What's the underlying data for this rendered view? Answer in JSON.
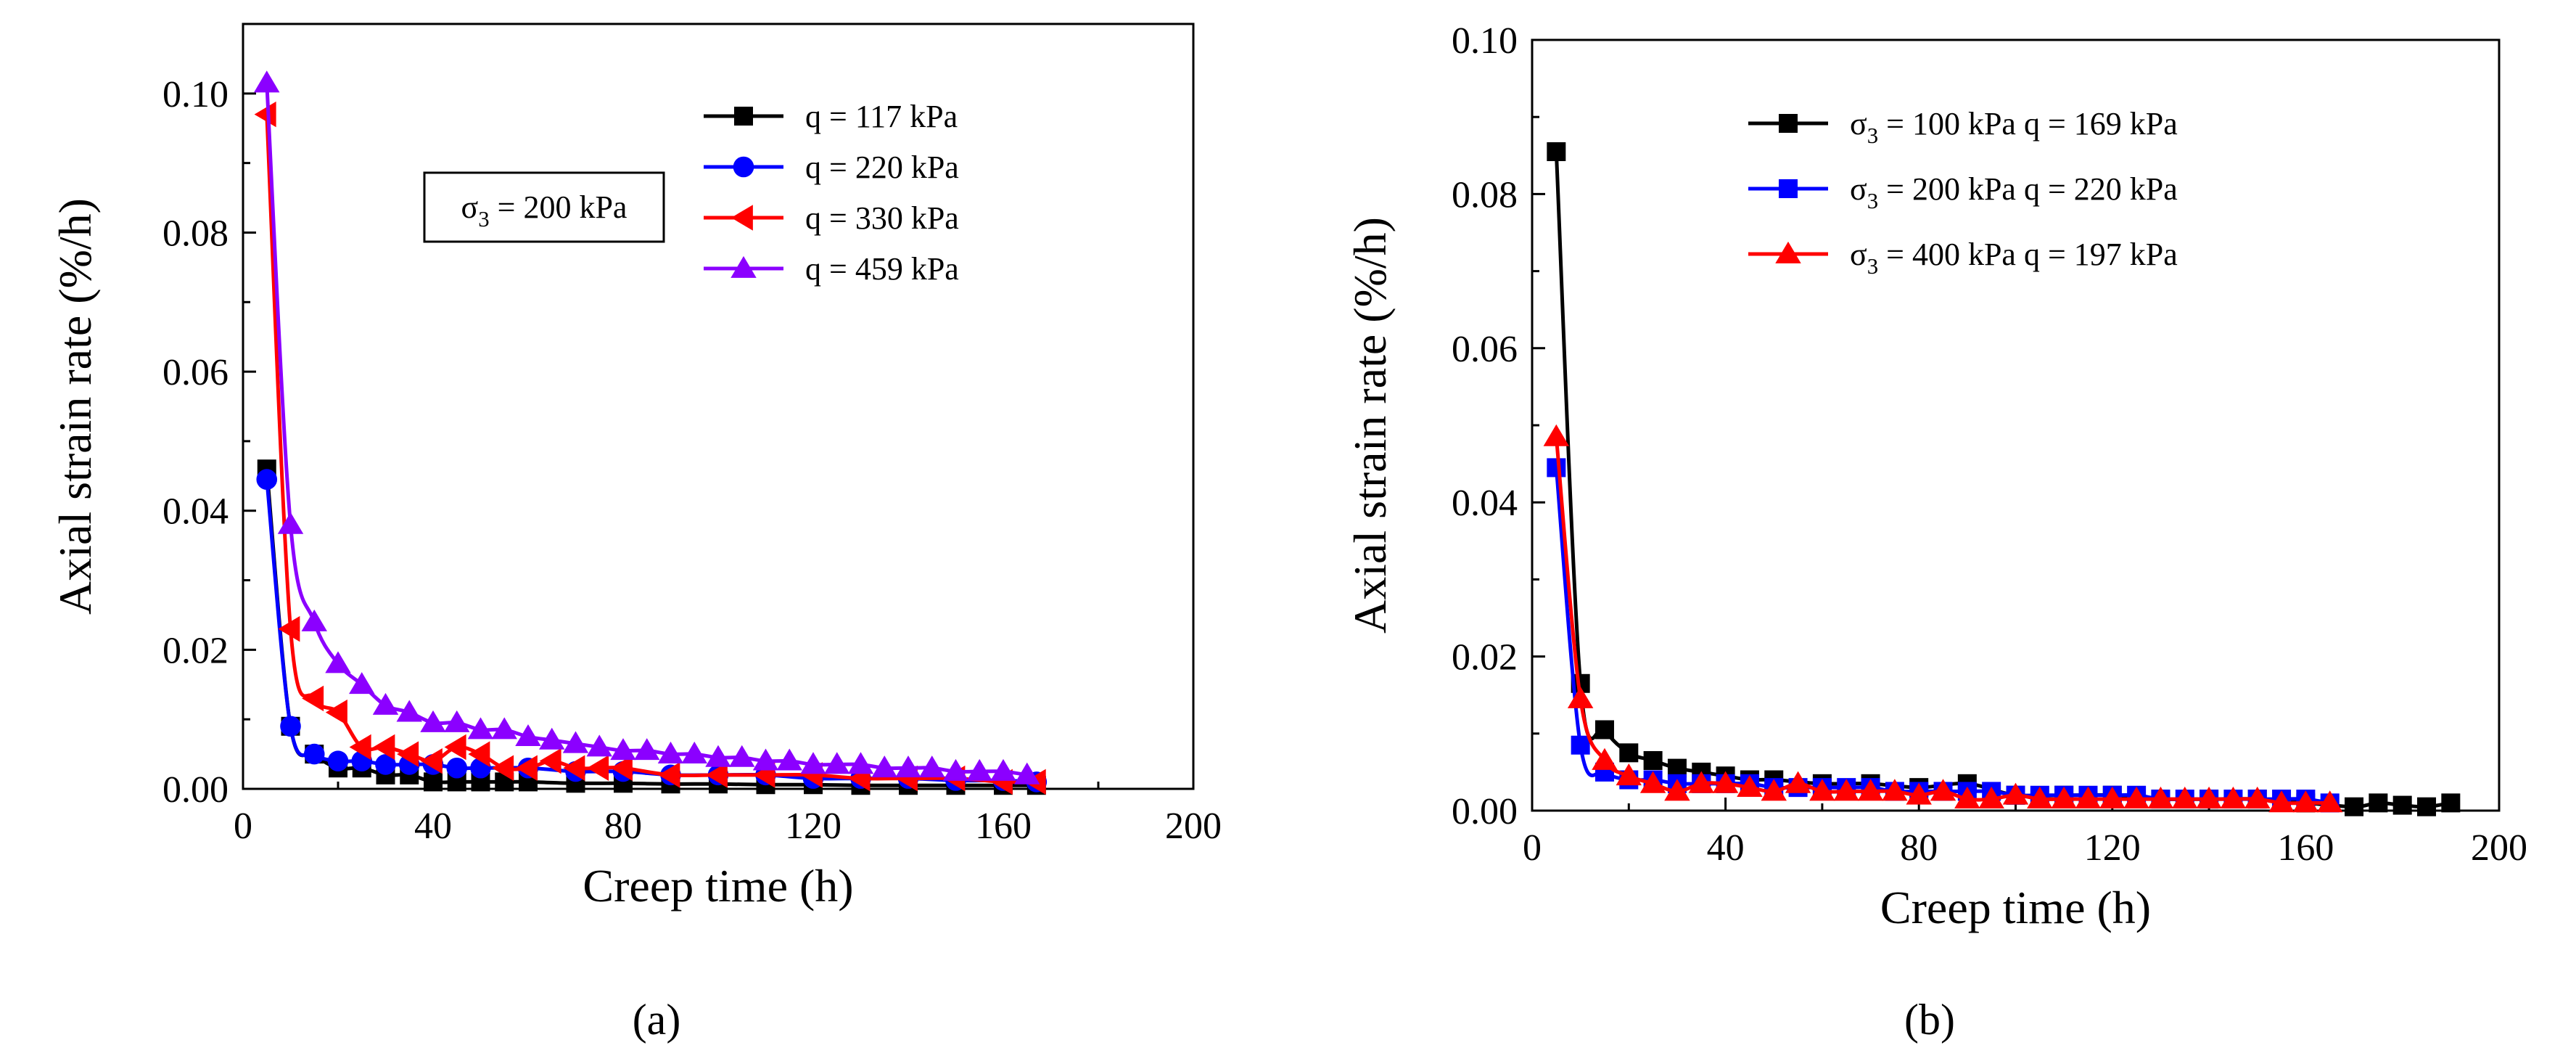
{
  "chart_data": [
    {
      "type": "line",
      "panel_label": "(a)",
      "xlabel": "Creep time (h)",
      "ylabel": "Axial strain rate (%/h)",
      "xlim": [
        0,
        200
      ],
      "ylim": [
        0,
        0.11
      ],
      "x_ticks": [
        0,
        40,
        80,
        120,
        160,
        200
      ],
      "x_tick_labels": [
        "0",
        "40",
        "80",
        "120",
        "160",
        "200"
      ],
      "y_ticks": [
        0,
        0.02,
        0.04,
        0.06,
        0.08,
        0.1
      ],
      "y_tick_labels": [
        "0.00",
        "0.02",
        "0.04",
        "0.06",
        "0.08",
        "0.10"
      ],
      "annotation": {
        "base": "σ",
        "sub": "3",
        "rest": " = 200 kPa"
      },
      "legend_position": "top-right",
      "grid": false,
      "series": [
        {
          "name": "q = 117 kPa",
          "color": "#000000",
          "marker": "square",
          "x": [
            5,
            10,
            15,
            20,
            25,
            30,
            35,
            40,
            45,
            50,
            55,
            60,
            70,
            80,
            90,
            100,
            110,
            120,
            130,
            140,
            150,
            160,
            167
          ],
          "y": [
            0.046,
            0.009,
            0.005,
            0.003,
            0.003,
            0.002,
            0.002,
            0.001,
            0.001,
            0.001,
            0.001,
            0.001,
            0.0008,
            0.0008,
            0.0007,
            0.0007,
            0.0006,
            0.0006,
            0.0005,
            0.0005,
            0.0005,
            0.0005,
            0.0005
          ]
        },
        {
          "name": "q = 220 kPa",
          "color": "#0000ff",
          "marker": "circle",
          "x": [
            5,
            10,
            15,
            20,
            25,
            30,
            35,
            40,
            45,
            50,
            60,
            70,
            80,
            90,
            100,
            110,
            120,
            130,
            140,
            150,
            160,
            167
          ],
          "y": [
            0.0445,
            0.009,
            0.005,
            0.004,
            0.004,
            0.0035,
            0.0035,
            0.0035,
            0.003,
            0.003,
            0.003,
            0.0025,
            0.0025,
            0.002,
            0.002,
            0.002,
            0.0015,
            0.0015,
            0.0015,
            0.0012,
            0.0012,
            0.001
          ]
        },
        {
          "name": "q = 330 kPa",
          "color": "#ff0000",
          "marker": "triangle-left",
          "x": [
            5,
            10,
            15,
            20,
            25,
            30,
            35,
            40,
            45,
            50,
            55,
            60,
            65,
            70,
            75,
            80,
            90,
            100,
            110,
            120,
            130,
            140,
            150,
            160,
            167
          ],
          "y": [
            0.097,
            0.023,
            0.013,
            0.011,
            0.006,
            0.006,
            0.005,
            0.004,
            0.006,
            0.005,
            0.003,
            0.003,
            0.004,
            0.003,
            0.003,
            0.003,
            0.002,
            0.002,
            0.002,
            0.002,
            0.0015,
            0.0015,
            0.0015,
            0.001,
            0.001
          ]
        },
        {
          "name": "q = 459 kPa",
          "color": "#8b00ff",
          "marker": "triangle-up",
          "x": [
            5,
            10,
            15,
            20,
            25,
            30,
            35,
            40,
            45,
            50,
            55,
            60,
            65,
            70,
            75,
            80,
            85,
            90,
            95,
            100,
            105,
            110,
            115,
            120,
            125,
            130,
            135,
            140,
            145,
            150,
            155,
            160,
            165
          ],
          "y": [
            0.1015,
            0.038,
            0.024,
            0.018,
            0.015,
            0.012,
            0.011,
            0.0095,
            0.0095,
            0.0085,
            0.0085,
            0.0075,
            0.007,
            0.0065,
            0.006,
            0.0055,
            0.0055,
            0.005,
            0.005,
            0.0045,
            0.0045,
            0.004,
            0.004,
            0.0035,
            0.0035,
            0.0035,
            0.003,
            0.003,
            0.003,
            0.0025,
            0.0025,
            0.0025,
            0.002
          ]
        }
      ]
    },
    {
      "type": "line",
      "panel_label": "(b)",
      "xlabel": "Creep time (h)",
      "ylabel": "Axial strain rate (%/h)",
      "xlim": [
        0,
        200
      ],
      "ylim": [
        0,
        0.1
      ],
      "x_ticks": [
        0,
        40,
        80,
        120,
        160,
        200
      ],
      "x_tick_labels": [
        "0",
        "40",
        "80",
        "120",
        "160",
        "200"
      ],
      "y_ticks": [
        0,
        0.02,
        0.04,
        0.06,
        0.08,
        0.1
      ],
      "y_tick_labels": [
        "0.00",
        "0.02",
        "0.04",
        "0.06",
        "0.08",
        "0.10"
      ],
      "legend_position": "top-right",
      "grid": false,
      "series": [
        {
          "name_base": "σ",
          "name_sub": "3",
          "name_rest": " = 100 kPa  q = 169 kPa",
          "color": "#000000",
          "marker": "square",
          "x": [
            5,
            10,
            15,
            20,
            25,
            30,
            35,
            40,
            45,
            50,
            60,
            70,
            80,
            90,
            100,
            110,
            120,
            130,
            140,
            150,
            160,
            170,
            175,
            180,
            185,
            190
          ],
          "y": [
            0.0855,
            0.0165,
            0.0105,
            0.0075,
            0.0065,
            0.0055,
            0.005,
            0.0045,
            0.004,
            0.004,
            0.0035,
            0.0035,
            0.003,
            0.0035,
            0.002,
            0.002,
            0.002,
            0.0015,
            0.0015,
            0.0015,
            0.001,
            0.0005,
            0.001,
            0.0007,
            0.0005,
            0.001
          ]
        },
        {
          "name_base": "σ",
          "name_sub": "3",
          "name_rest": " = 200 kPa  q = 220 kPa",
          "color": "#0000ff",
          "marker": "square",
          "x": [
            5,
            10,
            15,
            20,
            25,
            30,
            35,
            40,
            45,
            50,
            55,
            60,
            65,
            70,
            75,
            80,
            85,
            90,
            95,
            100,
            105,
            110,
            115,
            120,
            125,
            130,
            135,
            140,
            145,
            150,
            155,
            160,
            165
          ],
          "y": [
            0.0445,
            0.0085,
            0.005,
            0.004,
            0.004,
            0.0035,
            0.0035,
            0.0035,
            0.0035,
            0.003,
            0.003,
            0.003,
            0.003,
            0.003,
            0.0025,
            0.0025,
            0.0025,
            0.0025,
            0.0025,
            0.002,
            0.002,
            0.002,
            0.002,
            0.002,
            0.002,
            0.0015,
            0.0015,
            0.0015,
            0.0015,
            0.0015,
            0.0015,
            0.0015,
            0.001
          ]
        },
        {
          "name_base": "σ",
          "name_sub": "3",
          "name_rest": " = 400 kPa  q = 197 kPa",
          "color": "#ff0000",
          "marker": "triangle-up",
          "x": [
            5,
            10,
            15,
            20,
            25,
            30,
            35,
            40,
            45,
            50,
            55,
            60,
            65,
            70,
            75,
            80,
            85,
            90,
            95,
            100,
            105,
            110,
            115,
            120,
            125,
            130,
            135,
            140,
            145,
            150,
            155,
            160,
            165
          ],
          "y": [
            0.0485,
            0.0145,
            0.0065,
            0.0045,
            0.0035,
            0.0025,
            0.0035,
            0.0035,
            0.003,
            0.0025,
            0.0035,
            0.0025,
            0.0025,
            0.0025,
            0.0025,
            0.002,
            0.0025,
            0.0015,
            0.0015,
            0.002,
            0.0015,
            0.0015,
            0.0015,
            0.0015,
            0.0015,
            0.0015,
            0.0015,
            0.0015,
            0.0015,
            0.0015,
            0.001,
            0.001,
            0.001
          ]
        }
      ]
    }
  ]
}
